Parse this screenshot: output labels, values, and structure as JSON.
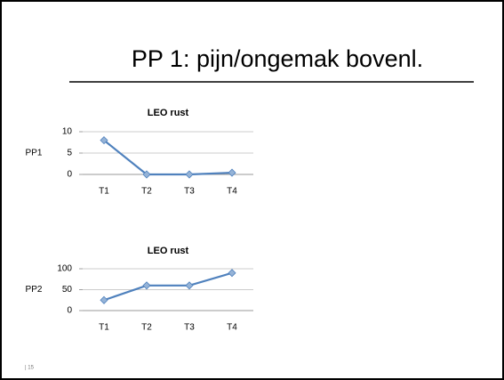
{
  "slide": {
    "title": "PP 1: pijn/ongemak bovenl.",
    "page_number": "| 15"
  },
  "chart_data": [
    {
      "type": "line",
      "title": "LEO rust",
      "y_label": "PP1",
      "categories": [
        "T1",
        "T2",
        "T3",
        "T4"
      ],
      "series": [
        {
          "name": "PP1",
          "color": "#4f81bd",
          "values": [
            8,
            0,
            0,
            0.4
          ]
        }
      ],
      "ylim": [
        0,
        10
      ],
      "yticks": [
        0,
        5,
        10
      ],
      "grid": true
    },
    {
      "type": "line",
      "title": "LEO rust",
      "y_label": "PP2",
      "categories": [
        "T1",
        "T2",
        "T3",
        "T4"
      ],
      "series": [
        {
          "name": "PP2",
          "color": "#4f81bd",
          "values": [
            25,
            60,
            60,
            90
          ]
        }
      ],
      "ylim": [
        0,
        100
      ],
      "yticks": [
        0,
        50,
        100
      ],
      "grid": true
    }
  ]
}
